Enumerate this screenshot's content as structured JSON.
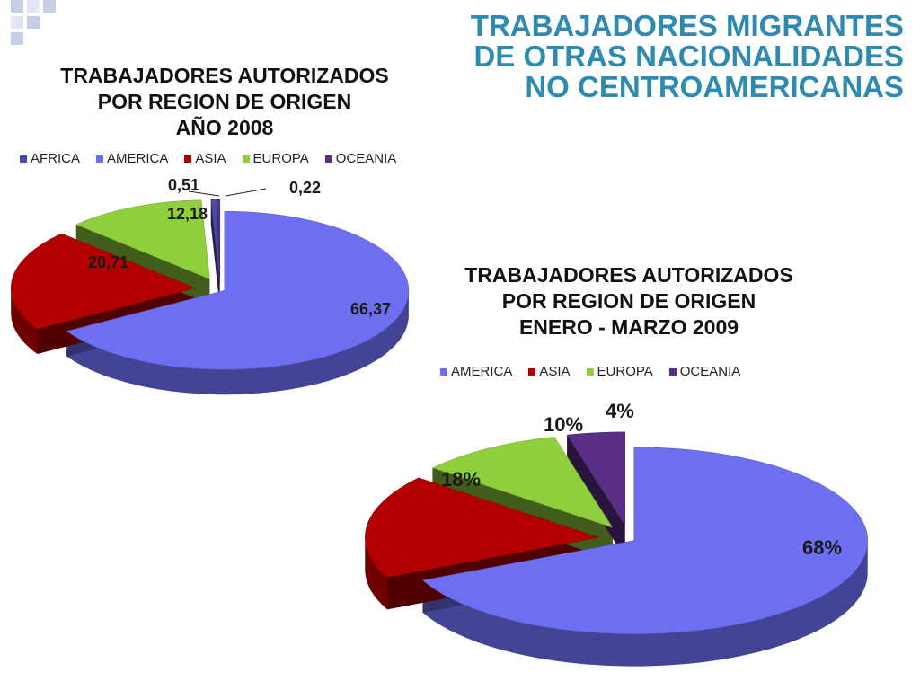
{
  "slide_title": [
    "TRABAJADORES MIGRANTES",
    "DE OTRAS NACIONALIDADES",
    "NO CENTROAMERICANAS"
  ],
  "colors": {
    "title": "#2e8ab0",
    "AFRICA": "#4a4aa8",
    "AMERICA": "#6e6ef2",
    "ASIA": "#b20000",
    "EUROPA": "#8fce3c",
    "OCEANIA": "#5a2d86"
  },
  "chart_data": [
    {
      "type": "pie",
      "title": [
        "TRABAJADORES AUTORIZADOS",
        "POR REGION DE ORIGEN",
        "AÑO 2008"
      ],
      "legend": [
        "AFRICA",
        "AMERICA",
        "ASIA",
        "EUROPA",
        "OCEANIA"
      ],
      "legend_position": "top",
      "slices": [
        {
          "name": "AMERICA",
          "value": 66.37,
          "label": "66,37"
        },
        {
          "name": "ASIA",
          "value": 20.71,
          "label": "20,71"
        },
        {
          "name": "EUROPA",
          "value": 12.18,
          "label": "12,18"
        },
        {
          "name": "AFRICA",
          "value": 0.51,
          "label": "0,51"
        },
        {
          "name": "OCEANIA",
          "value": 0.22,
          "label": "0,22"
        }
      ]
    },
    {
      "type": "pie",
      "title": [
        "TRABAJADORES AUTORIZADOS",
        "POR REGION DE ORIGEN",
        "ENERO - MARZO 2009"
      ],
      "legend": [
        "AMERICA",
        "ASIA",
        "EUROPA",
        "OCEANIA"
      ],
      "legend_position": "top",
      "slices": [
        {
          "name": "AMERICA",
          "value": 68,
          "label": "68%"
        },
        {
          "name": "ASIA",
          "value": 18,
          "label": "18%"
        },
        {
          "name": "EUROPA",
          "value": 10,
          "label": "10%"
        },
        {
          "name": "OCEANIA",
          "value": 4,
          "label": "4%"
        }
      ]
    }
  ]
}
